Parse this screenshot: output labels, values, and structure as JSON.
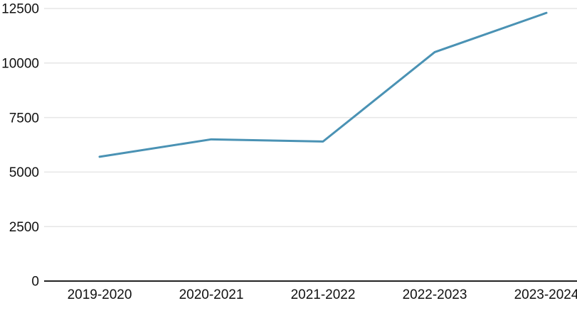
{
  "chart_data": {
    "type": "line",
    "title": "",
    "xlabel": "",
    "ylabel": "",
    "categories": [
      "2019-2020",
      "2020-2021",
      "2021-2022",
      "2022-2023",
      "2023-2024"
    ],
    "values": [
      5700,
      6500,
      6400,
      10500,
      12300
    ],
    "ylim": [
      0,
      12500
    ],
    "yticks": [
      0,
      2500,
      5000,
      7500,
      10000,
      12500
    ],
    "grid": true,
    "legend": false,
    "colors": {
      "line": "#4a92b4",
      "gridline": "#e6e6e6",
      "axis": "#222222",
      "text": "#111111",
      "background": "#ffffff"
    }
  }
}
